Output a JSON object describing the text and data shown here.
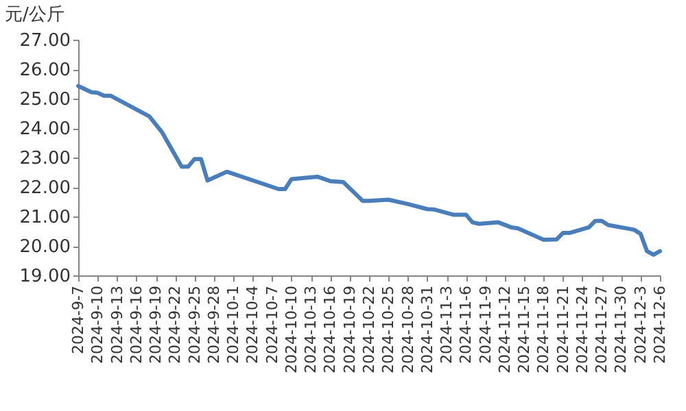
{
  "chart_data": {
    "type": "line",
    "ylabel": "元/公斤",
    "x": [
      "2024-09-07",
      "2024-09-09",
      "2024-09-10",
      "2024-09-11",
      "2024-09-12",
      "2024-09-18",
      "2024-09-20",
      "2024-09-23",
      "2024-09-24",
      "2024-09-25",
      "2024-09-26",
      "2024-09-27",
      "2024-09-30",
      "2024-10-08",
      "2024-10-09",
      "2024-10-10",
      "2024-10-14",
      "2024-10-16",
      "2024-10-18",
      "2024-10-21",
      "2024-10-22",
      "2024-10-25",
      "2024-10-28",
      "2024-10-31",
      "2024-11-01",
      "2024-11-04",
      "2024-11-06",
      "2024-11-07",
      "2024-11-08",
      "2024-11-11",
      "2024-11-13",
      "2024-11-14",
      "2024-11-18",
      "2024-11-20",
      "2024-11-21",
      "2024-11-22",
      "2024-11-25",
      "2024-11-26",
      "2024-11-27",
      "2024-11-28",
      "2024-12-02",
      "2024-12-03",
      "2024-12-04",
      "2024-12-05",
      "2024-12-06"
    ],
    "series": [
      {
        "color": "#4a7ebb",
        "values": [
          25.43,
          25.22,
          25.2,
          25.1,
          25.1,
          24.4,
          23.85,
          22.69,
          22.69,
          22.95,
          22.95,
          22.22,
          22.52,
          21.93,
          21.93,
          22.27,
          22.35,
          22.2,
          22.17,
          21.53,
          21.53,
          21.57,
          21.42,
          21.25,
          21.24,
          21.06,
          21.06,
          20.8,
          20.75,
          20.8,
          20.63,
          20.6,
          20.21,
          20.22,
          20.44,
          20.44,
          20.63,
          20.85,
          20.85,
          20.71,
          20.55,
          20.41,
          19.82,
          19.7,
          19.82
        ]
      }
    ],
    "xlim": [
      "2024-09-07",
      "2024-12-06"
    ],
    "xticks": [
      {
        "value": "2024-09-07",
        "label": "2024-9-7"
      },
      {
        "value": "2024-09-10",
        "label": "2024-9-10"
      },
      {
        "value": "2024-09-13",
        "label": "2024-9-13"
      },
      {
        "value": "2024-09-16",
        "label": "2024-9-16"
      },
      {
        "value": "2024-09-19",
        "label": "2024-9-19"
      },
      {
        "value": "2024-09-22",
        "label": "2024-9-22"
      },
      {
        "value": "2024-09-25",
        "label": "2024-9-25"
      },
      {
        "value": "2024-09-28",
        "label": "2024-9-28"
      },
      {
        "value": "2024-10-01",
        "label": "2024-10-1"
      },
      {
        "value": "2024-10-04",
        "label": "2024-10-4"
      },
      {
        "value": "2024-10-07",
        "label": "2024-10-7"
      },
      {
        "value": "2024-10-10",
        "label": "2024-10-10"
      },
      {
        "value": "2024-10-13",
        "label": "2024-10-13"
      },
      {
        "value": "2024-10-16",
        "label": "2024-10-16"
      },
      {
        "value": "2024-10-19",
        "label": "2024-10-19"
      },
      {
        "value": "2024-10-22",
        "label": "2024-10-22"
      },
      {
        "value": "2024-10-25",
        "label": "2024-10-25"
      },
      {
        "value": "2024-10-28",
        "label": "2024-10-28"
      },
      {
        "value": "2024-10-31",
        "label": "2024-10-31"
      },
      {
        "value": "2024-11-03",
        "label": "2024-11-3"
      },
      {
        "value": "2024-11-06",
        "label": "2024-11-6"
      },
      {
        "value": "2024-11-09",
        "label": "2024-11-9"
      },
      {
        "value": "2024-11-12",
        "label": "2024-11-12"
      },
      {
        "value": "2024-11-15",
        "label": "2024-11-15"
      },
      {
        "value": "2024-11-18",
        "label": "2024-11-18"
      },
      {
        "value": "2024-11-21",
        "label": "2024-11-21"
      },
      {
        "value": "2024-11-24",
        "label": "2024-11-24"
      },
      {
        "value": "2024-11-27",
        "label": "2024-11-27"
      },
      {
        "value": "2024-11-30",
        "label": "2024-11-30"
      },
      {
        "value": "2024-12-03",
        "label": "2024-12-3"
      },
      {
        "value": "2024-12-06",
        "label": "2024-12-6"
      }
    ],
    "ylim": [
      19,
      27
    ],
    "yticks": [
      {
        "value": 19,
        "label": "19.00"
      },
      {
        "value": 20,
        "label": "20.00"
      },
      {
        "value": 21,
        "label": "21.00"
      },
      {
        "value": 22,
        "label": "22.00"
      },
      {
        "value": 23,
        "label": "23.00"
      },
      {
        "value": 24,
        "label": "24.00"
      },
      {
        "value": 25,
        "label": "25.00"
      },
      {
        "value": 26,
        "label": "26.00"
      },
      {
        "value": 27,
        "label": "27.00"
      }
    ],
    "grid": false,
    "legend": false,
    "marker": "none",
    "line_style": "solid"
  }
}
